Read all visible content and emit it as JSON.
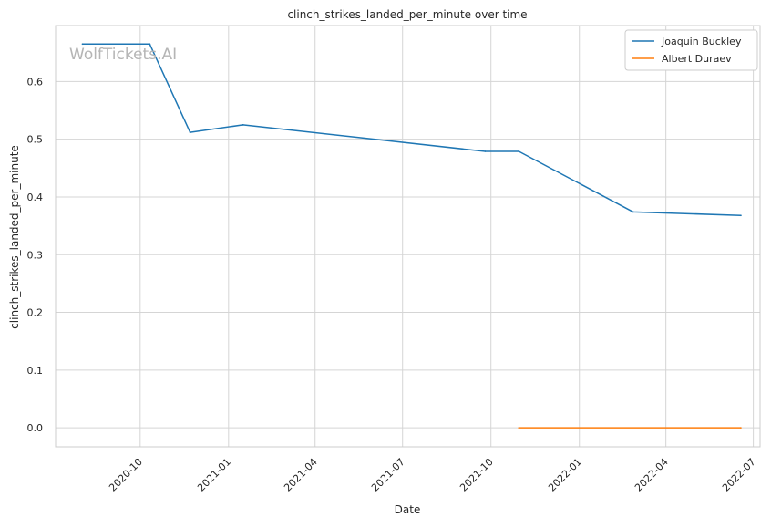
{
  "chart_data": {
    "type": "line",
    "title": "clinch_strikes_landed_per_minute over time",
    "xlabel": "Date",
    "ylabel": "clinch_strikes_landed_per_minute",
    "watermark": "WolfTickets.AI",
    "x_axis": "date",
    "xlim": [
      "2020-07-05",
      "2022-07-08"
    ],
    "ylim": [
      -0.033,
      0.697
    ],
    "x_ticks": [
      "2020-10",
      "2021-01",
      "2021-04",
      "2021-07",
      "2021-10",
      "2022-01",
      "2022-04",
      "2022-07"
    ],
    "y_ticks": [
      "0.0",
      "0.1",
      "0.2",
      "0.3",
      "0.4",
      "0.5",
      "0.6"
    ],
    "grid": true,
    "legend_position": "top-right",
    "colors": {
      "grid": "#d5d5d5",
      "spine": "#cccccc"
    },
    "series": [
      {
        "name": "Joaquin Buckley",
        "color": "#1f77b4",
        "points": [
          {
            "x": "2020-08-02",
            "y": 0.665
          },
          {
            "x": "2020-10-11",
            "y": 0.665
          },
          {
            "x": "2020-11-22",
            "y": 0.512
          },
          {
            "x": "2021-01-16",
            "y": 0.525
          },
          {
            "x": "2021-09-25",
            "y": 0.479
          },
          {
            "x": "2021-10-30",
            "y": 0.479
          },
          {
            "x": "2022-02-26",
            "y": 0.374
          },
          {
            "x": "2022-06-18",
            "y": 0.368
          }
        ]
      },
      {
        "name": "Albert Duraev",
        "color": "#ff7f0e",
        "points": [
          {
            "x": "2021-10-30",
            "y": 0.0
          },
          {
            "x": "2022-06-18",
            "y": 0.0
          }
        ]
      }
    ]
  }
}
